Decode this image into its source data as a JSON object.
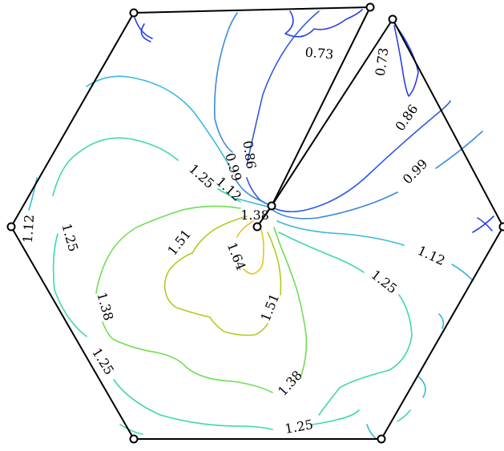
{
  "chart_data": {
    "type": "contour",
    "title": "",
    "levels": [
      {
        "value": "0.73",
        "color": "#2b3ee6"
      },
      {
        "value": "0.86",
        "color": "#2f5ae0"
      },
      {
        "value": "0.99",
        "color": "#3a8ad8"
      },
      {
        "value": "1.12",
        "color": "#3ab8de"
      },
      {
        "value": "1.25",
        "color": "#3cd9a3"
      },
      {
        "value": "1.38",
        "color": "#70dd54"
      },
      {
        "value": "1.51",
        "color": "#a8cf21"
      },
      {
        "value": "1.64",
        "color": "#e8c21a"
      }
    ],
    "contour_labels": [
      {
        "text": "0.73",
        "level": "0.73"
      },
      {
        "text": "0.73",
        "level": "0.73"
      },
      {
        "text": "0.86",
        "level": "0.86"
      },
      {
        "text": "0.86",
        "level": "0.86"
      },
      {
        "text": "0.99",
        "level": "0.99"
      },
      {
        "text": "0.99",
        "level": "0.99"
      },
      {
        "text": "1.12",
        "level": "1.12"
      },
      {
        "text": "1.12",
        "level": "1.12"
      },
      {
        "text": "1.12",
        "level": "1.12"
      },
      {
        "text": "1.25",
        "level": "1.25"
      },
      {
        "text": "1.25",
        "level": "1.25"
      },
      {
        "text": "1.25",
        "level": "1.25"
      },
      {
        "text": "1.25",
        "level": "1.25"
      },
      {
        "text": "1.25",
        "level": "1.25"
      },
      {
        "text": "1.38",
        "level": "1.38"
      },
      {
        "text": "1.38",
        "level": "1.38"
      },
      {
        "text": "1.38",
        "level": "1.38"
      },
      {
        "text": "1.51",
        "level": "1.51"
      },
      {
        "text": "1.51",
        "level": "1.51"
      },
      {
        "text": "1.64",
        "level": "1.64"
      }
    ],
    "domain": {
      "shape": "hexagon with slit",
      "boundary_color": "#000000",
      "vertex_marker": "open-circle"
    }
  }
}
